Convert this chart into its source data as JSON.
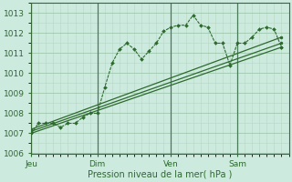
{
  "xlabel": "Pression niveau de la mer( hPa )",
  "background_color": "#cdeade",
  "grid_color_major": "#a0c8b0",
  "grid_color_minor": "#b8d8c4",
  "line_color": "#2d6a2d",
  "ylim": [
    1006,
    1013.5
  ],
  "xlim": [
    0,
    35
  ],
  "yticks": [
    1006,
    1007,
    1008,
    1009,
    1010,
    1011,
    1012,
    1013
  ],
  "xtick_positions": [
    0,
    9,
    19,
    28
  ],
  "xtick_labels": [
    "Jeu",
    "Dim",
    "Ven",
    "Sam"
  ],
  "vlines": [
    0,
    9,
    19,
    28
  ],
  "series_detail": {
    "x": [
      0,
      1,
      2,
      3,
      4,
      5,
      6,
      7,
      8,
      9,
      10,
      11,
      12,
      13,
      14,
      15,
      16,
      17,
      18,
      19,
      20,
      21,
      22,
      23,
      24,
      25,
      26,
      27,
      28,
      29,
      30,
      31,
      32,
      33,
      34
    ],
    "y": [
      1007.0,
      1007.5,
      1007.5,
      1007.5,
      1007.3,
      1007.5,
      1007.5,
      1007.8,
      1008.0,
      1008.0,
      1009.3,
      1010.5,
      1011.2,
      1011.5,
      1011.2,
      1010.7,
      1011.1,
      1011.5,
      1012.1,
      1012.3,
      1012.4,
      1012.4,
      1012.9,
      1012.4,
      1012.3,
      1011.5,
      1011.5,
      1010.4,
      1011.5,
      1011.5,
      1011.8,
      1012.2,
      1012.3,
      1012.2,
      1011.3
    ]
  },
  "series_linear1": {
    "x": [
      0,
      34
    ],
    "y": [
      1007.0,
      1011.3
    ]
  },
  "series_linear2": {
    "x": [
      0,
      34
    ],
    "y": [
      1007.1,
      1011.5
    ]
  },
  "series_linear3": {
    "x": [
      0,
      34
    ],
    "y": [
      1007.2,
      1011.8
    ]
  }
}
